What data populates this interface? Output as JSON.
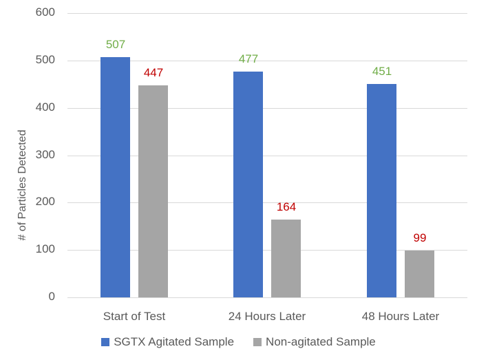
{
  "chart_data": {
    "type": "bar",
    "title": "",
    "xlabel": "",
    "ylabel": "# of Particles Detected",
    "ylim": [
      0,
      600
    ],
    "yticks": [
      "0",
      "100",
      "200",
      "300",
      "400",
      "500",
      "600"
    ],
    "grid": true,
    "legend_position": "bottom",
    "categories": [
      "Start of Test",
      "24 Hours Later",
      "48 Hours Later"
    ],
    "series": [
      {
        "name": "SGTX Agitated Sample",
        "color": "#4472c4",
        "label_color": "#70ad47",
        "values": [
          507,
          477,
          451
        ]
      },
      {
        "name": "Non-agitated Sample",
        "color": "#a5a5a5",
        "label_color": "#c00000",
        "values": [
          447,
          164,
          99
        ]
      }
    ]
  }
}
